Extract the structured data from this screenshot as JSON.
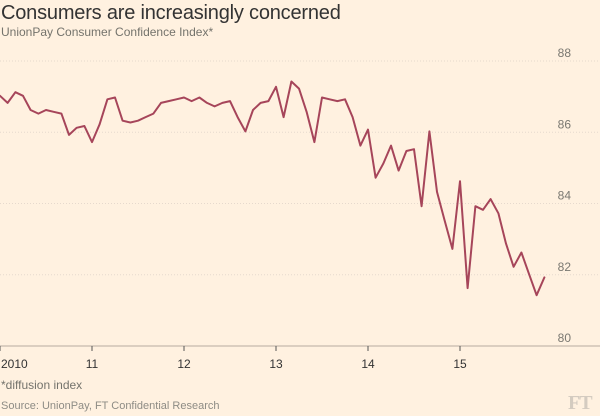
{
  "header": {
    "title": "Consumers are increasingly concerned",
    "subtitle": "UnionPay Consumer Confidence Index*"
  },
  "footer": {
    "footnote": "*diffusion index",
    "source": "Source: UnionPay, FT Confidential Research",
    "logo": "FT"
  },
  "colors": {
    "background": "#fff1e0",
    "line": "#a6455a"
  },
  "chart_data": {
    "type": "line",
    "title": "Consumers are increasingly concerned",
    "subtitle": "UnionPay Consumer Confidence Index*",
    "xlabel": "",
    "ylabel": "",
    "ylim": [
      80,
      88
    ],
    "yticks": [
      80,
      82,
      84,
      86,
      88
    ],
    "y_axis_side": "right",
    "grid": true,
    "xticks": [
      {
        "value": 2010,
        "label": "2010"
      },
      {
        "value": 2011,
        "label": "11"
      },
      {
        "value": 2012,
        "label": "12"
      },
      {
        "value": 2013,
        "label": "13"
      },
      {
        "value": 2014,
        "label": "14"
      },
      {
        "value": 2015,
        "label": "15"
      }
    ],
    "x": [
      2010.0,
      2010.083,
      2010.167,
      2010.25,
      2010.333,
      2010.417,
      2010.5,
      2010.583,
      2010.667,
      2010.75,
      2010.833,
      2010.917,
      2011.0,
      2011.083,
      2011.167,
      2011.25,
      2011.333,
      2011.417,
      2011.5,
      2011.583,
      2011.667,
      2011.75,
      2011.833,
      2011.917,
      2012.0,
      2012.083,
      2012.167,
      2012.25,
      2012.333,
      2012.417,
      2012.5,
      2012.583,
      2012.667,
      2012.75,
      2012.833,
      2012.917,
      2013.0,
      2013.083,
      2013.167,
      2013.25,
      2013.333,
      2013.417,
      2013.5,
      2013.583,
      2013.667,
      2013.75,
      2013.833,
      2013.917,
      2014.0,
      2014.083,
      2014.167,
      2014.25,
      2014.333,
      2014.417,
      2014.5,
      2014.583,
      2014.667,
      2014.75,
      2014.833,
      2014.917,
      2015.0,
      2015.083,
      2015.167,
      2015.25,
      2015.333,
      2015.417,
      2015.5,
      2015.583,
      2015.667,
      2015.75,
      2015.833,
      2015.917
    ],
    "series": [
      {
        "values": [
          86.8,
          86.6,
          86.9,
          86.8,
          86.4,
          86.3,
          86.4,
          86.35,
          86.3,
          85.7,
          85.9,
          85.95,
          85.5,
          86.0,
          86.7,
          86.75,
          86.1,
          86.05,
          86.1,
          86.2,
          86.3,
          86.6,
          86.65,
          86.7,
          86.75,
          86.65,
          86.75,
          86.6,
          86.5,
          86.6,
          86.65,
          86.2,
          85.8,
          86.4,
          86.6,
          86.65,
          87.05,
          86.2,
          87.2,
          87.0,
          86.35,
          85.5,
          86.75,
          86.7,
          86.65,
          86.7,
          86.2,
          85.4,
          85.85,
          84.5,
          84.9,
          85.4,
          84.7,
          85.25,
          85.3,
          83.7,
          85.8,
          84.1,
          83.3,
          82.5,
          84.4,
          81.4,
          83.7,
          83.6,
          83.9,
          83.5,
          82.65,
          82.0,
          82.4,
          81.8,
          81.2,
          81.7
        ]
      }
    ]
  }
}
